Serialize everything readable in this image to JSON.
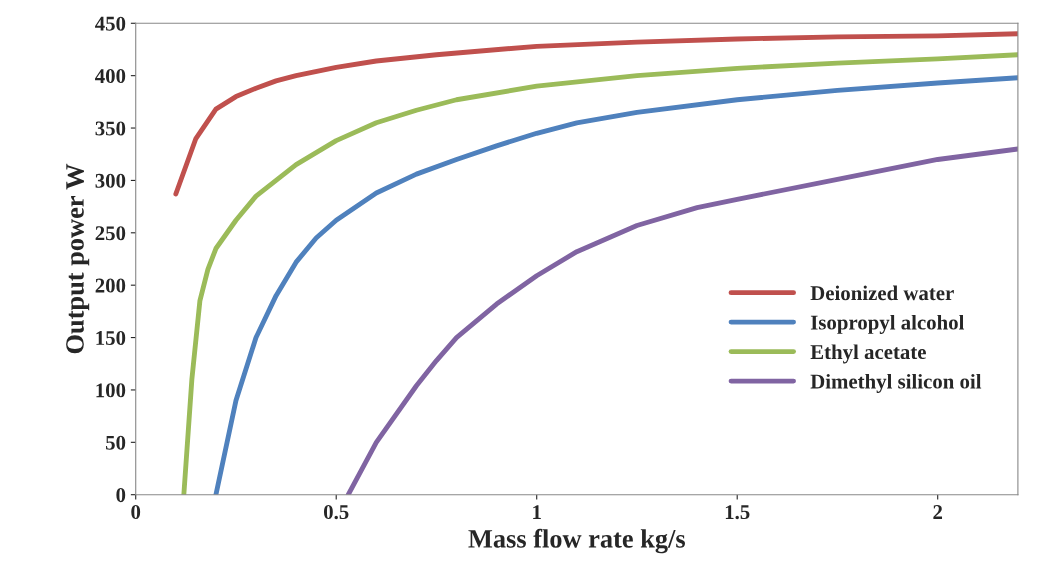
{
  "chart_data": {
    "type": "line",
    "xlabel": "Mass flow rate kg/s",
    "ylabel": "Output power W",
    "xlim": [
      0,
      2.2
    ],
    "xticks": [
      0,
      0.5,
      1,
      1.5,
      2
    ],
    "ylim": [
      0,
      450
    ],
    "yticks": [
      0,
      50,
      100,
      150,
      200,
      250,
      300,
      350,
      400,
      450
    ],
    "grid": false,
    "legend": "right",
    "marker": "none",
    "line_style": "solid",
    "series": [
      {
        "name": "Deionized water",
        "color": "#c0504d",
        "x": [
          0.1,
          0.15,
          0.2,
          0.25,
          0.3,
          0.35,
          0.4,
          0.5,
          0.6,
          0.75,
          1.0,
          1.25,
          1.5,
          1.75,
          2.0,
          2.2
        ],
        "values": [
          287,
          340,
          368,
          380,
          388,
          395,
          400,
          408,
          414,
          420,
          428,
          432,
          435,
          437,
          438,
          440
        ]
      },
      {
        "name": "Isopropyl alcohol",
        "color": "#4f81bd",
        "x": [
          0.2,
          0.25,
          0.3,
          0.35,
          0.4,
          0.45,
          0.5,
          0.6,
          0.7,
          0.8,
          0.9,
          1.0,
          1.1,
          1.25,
          1.5,
          1.75,
          2.0,
          2.2
        ],
        "values": [
          0,
          90,
          150,
          190,
          222,
          245,
          262,
          288,
          306,
          320,
          333,
          345,
          355,
          365,
          377,
          386,
          393,
          398
        ]
      },
      {
        "name": "Ethyl acetate",
        "color": "#9bbb59",
        "x": [
          0.12,
          0.14,
          0.16,
          0.18,
          0.2,
          0.25,
          0.3,
          0.35,
          0.4,
          0.5,
          0.6,
          0.7,
          0.8,
          1.0,
          1.25,
          1.5,
          1.75,
          2.0,
          2.2
        ],
        "values": [
          0,
          110,
          185,
          215,
          235,
          262,
          285,
          300,
          315,
          338,
          355,
          367,
          377,
          390,
          400,
          407,
          412,
          416,
          420
        ]
      },
      {
        "name": "Dimethyl silicon oil",
        "color": "#8064a2",
        "x": [
          0.53,
          0.6,
          0.7,
          0.75,
          0.8,
          0.9,
          1.0,
          1.1,
          1.25,
          1.4,
          1.5,
          1.75,
          2.0,
          2.2
        ],
        "values": [
          0,
          50,
          104,
          128,
          150,
          182,
          209,
          232,
          257,
          274,
          282,
          301,
          320,
          330
        ]
      }
    ]
  }
}
